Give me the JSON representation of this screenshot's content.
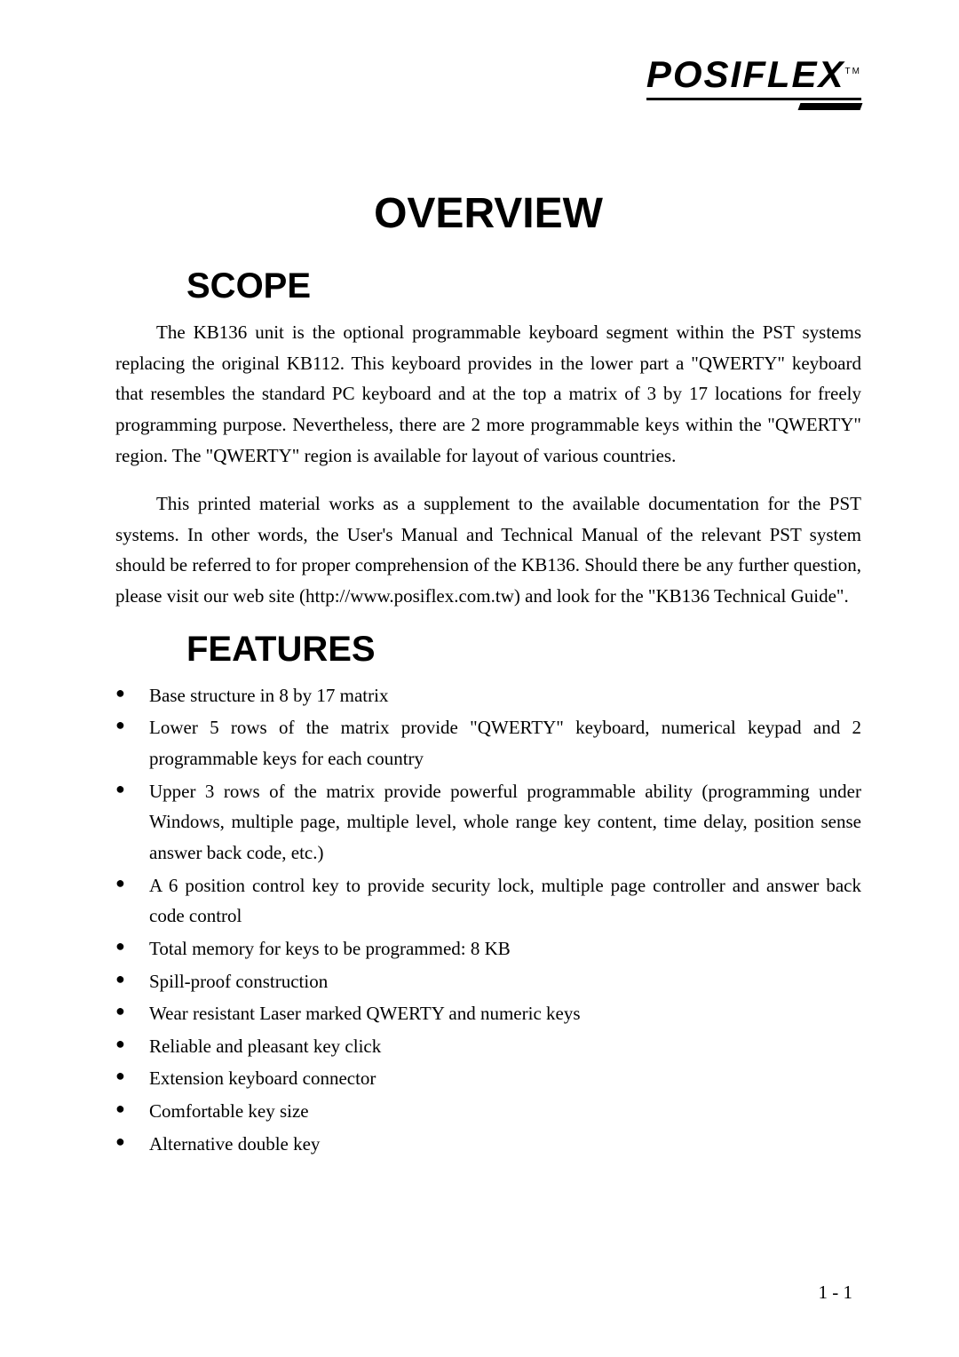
{
  "logo": {
    "text": "POSIFLEX",
    "trademark": "TM"
  },
  "main_title": "OVERVIEW",
  "sections": {
    "scope": {
      "title": "SCOPE",
      "paragraphs": [
        "The KB136 unit is the optional programmable keyboard segment within the PST systems replacing the original KB112. This keyboard provides in the lower part a \"QWERTY\" keyboard that resembles the standard PC keyboard and at the top a matrix of 3 by 17 locations for freely programming purpose. Nevertheless, there are 2 more programmable keys within the \"QWERTY\" region. The \"QWERTY\" region is available for layout of various countries.",
        "This printed material works as a supplement to the available documentation for the PST systems. In other words, the User's Manual and Technical Manual of the relevant PST system should be referred to for proper comprehension of the KB136. Should there be any further question, please visit our web site (http://www.posiflex.com.tw) and look for the \"KB136 Technical Guide\"."
      ]
    },
    "features": {
      "title": "FEATURES",
      "items": [
        "Base structure in 8 by 17 matrix",
        "Lower 5 rows of the matrix provide \"QWERTY\" keyboard, numerical keypad and 2 programmable keys for each country",
        "Upper 3 rows of the matrix provide powerful programmable ability (programming under Windows, multiple page, multiple level, whole range key content, time delay, position sense answer back code, etc.)",
        "A 6 position control key to provide security lock, multiple page controller and answer back code control",
        "Total memory for keys to be programmed: 8 KB",
        "Spill-proof construction",
        "Wear resistant Laser marked QWERTY and numeric keys",
        "Reliable and pleasant key click",
        "Extension keyboard connector",
        "Comfortable key size",
        "Alternative double key"
      ]
    }
  },
  "page_number": "1 - 1",
  "styling": {
    "body_font_size_pt": 16,
    "title_font_size_pt": 36,
    "section_title_font_size_pt": 30,
    "background_color": "#ffffff",
    "text_color": "#000000",
    "body_font_family": "Times New Roman",
    "heading_font_family": "Arial"
  }
}
